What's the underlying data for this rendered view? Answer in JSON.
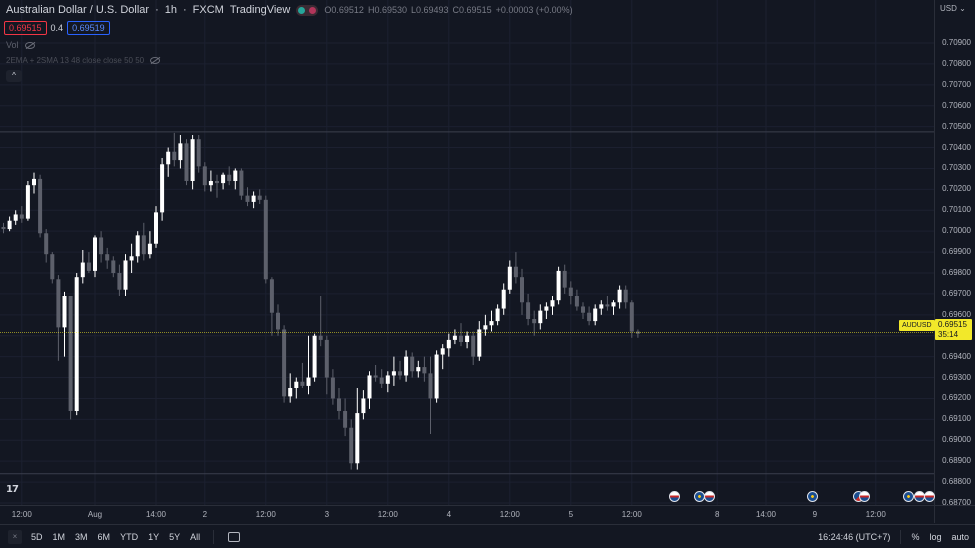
{
  "header": {
    "symbol_title": "Australian Dollar / U.S. Dollar",
    "interval": "1h",
    "broker": "FXCM",
    "platform": "TradingView",
    "ohlc": {
      "o_label": "O",
      "o": "0.69512",
      "h_label": "H",
      "h": "0.69530",
      "l_label": "L",
      "l": "0.69493",
      "c_label": "C",
      "c": "0.69515",
      "change": "+0.00003 (+0.00%)"
    }
  },
  "trade": {
    "sell": "0.69515",
    "spread": "0.4",
    "buy": "0.69519"
  },
  "indicators": [
    {
      "label": "Vol"
    },
    {
      "label": "2EMA + 2SMA 13 48 close close 50 50"
    }
  ],
  "price_axis": {
    "currency": "USD",
    "ticks": [
      "0.70900",
      "0.70800",
      "0.70700",
      "0.70600",
      "0.70500",
      "0.70400",
      "0.70300",
      "0.70200",
      "0.70100",
      "0.70000",
      "0.69900",
      "0.69800",
      "0.69700",
      "0.69600",
      "0.69500",
      "0.69400",
      "0.69300",
      "0.69200",
      "0.69100",
      "0.69000",
      "0.68900",
      "0.68800",
      "0.68700"
    ],
    "current_price": "0.69515",
    "countdown": "35:14",
    "symbol_tag": "AUDUSD"
  },
  "time_axis": {
    "labels": [
      {
        "text": "12:00",
        "bar": 3
      },
      {
        "text": "Aug",
        "bar": 15
      },
      {
        "text": "14:00",
        "bar": 25
      },
      {
        "text": "2",
        "bar": 33
      },
      {
        "text": "12:00",
        "bar": 43
      },
      {
        "text": "3",
        "bar": 53
      },
      {
        "text": "12:00",
        "bar": 63
      },
      {
        "text": "4",
        "bar": 73
      },
      {
        "text": "12:00",
        "bar": 83
      },
      {
        "text": "5",
        "bar": 93
      },
      {
        "text": "12:00",
        "bar": 103
      },
      {
        "text": "8",
        "bar": 117
      },
      {
        "text": "14:00",
        "bar": 125
      },
      {
        "text": "9",
        "bar": 133
      },
      {
        "text": "12:00",
        "bar": 143
      }
    ]
  },
  "bottom_bar": {
    "ranges": [
      "5D",
      "1M",
      "3M",
      "6M",
      "YTD",
      "1Y",
      "5Y",
      "All"
    ],
    "clock": "16:24:46 (UTC+7)",
    "percent": "%",
    "log": "log",
    "auto": "auto"
  },
  "colors": {
    "bg": "#131722",
    "candle_up": "#ffffff",
    "candle_down": "#5d606b",
    "price_line": "#f2e82a",
    "grid": "#1c2030"
  },
  "chart_data": {
    "type": "candlestick",
    "y_min": 0.687,
    "y_max": 0.709,
    "reference_lines": [
      0.70475,
      0.6884
    ],
    "candles": [
      [
        0.7002,
        0.7004,
        0.6999,
        0.7001
      ],
      [
        0.7001,
        0.7007,
        0.7,
        0.7005
      ],
      [
        0.7005,
        0.701,
        0.7003,
        0.7008
      ],
      [
        0.7008,
        0.7012,
        0.7004,
        0.7006
      ],
      [
        0.7006,
        0.7024,
        0.7005,
        0.7022
      ],
      [
        0.7022,
        0.7028,
        0.7018,
        0.7025
      ],
      [
        0.7025,
        0.7027,
        0.6997,
        0.6999
      ],
      [
        0.6999,
        0.7001,
        0.6985,
        0.6989
      ],
      [
        0.6989,
        0.699,
        0.6975,
        0.6977
      ],
      [
        0.6977,
        0.6979,
        0.6938,
        0.6954
      ],
      [
        0.6954,
        0.6971,
        0.694,
        0.6969
      ],
      [
        0.6969,
        0.6968,
        0.691,
        0.6914
      ],
      [
        0.6914,
        0.698,
        0.6912,
        0.6978
      ],
      [
        0.6978,
        0.6991,
        0.6975,
        0.6985
      ],
      [
        0.6985,
        0.699,
        0.698,
        0.6981
      ],
      [
        0.6981,
        0.6998,
        0.6978,
        0.6997
      ],
      [
        0.6997,
        0.7,
        0.6985,
        0.6989
      ],
      [
        0.6989,
        0.6992,
        0.6982,
        0.6986
      ],
      [
        0.6986,
        0.6988,
        0.6978,
        0.698
      ],
      [
        0.698,
        0.6984,
        0.6969,
        0.6972
      ],
      [
        0.6972,
        0.6989,
        0.6969,
        0.6986
      ],
      [
        0.6986,
        0.6994,
        0.698,
        0.6988
      ],
      [
        0.6988,
        0.7,
        0.6985,
        0.6998
      ],
      [
        0.6998,
        0.7004,
        0.6986,
        0.6989
      ],
      [
        0.6989,
        0.7,
        0.6987,
        0.6994
      ],
      [
        0.6994,
        0.7012,
        0.6992,
        0.7009
      ],
      [
        0.7009,
        0.7035,
        0.7005,
        0.7032
      ],
      [
        0.7032,
        0.704,
        0.7026,
        0.7038
      ],
      [
        0.7038,
        0.7047,
        0.7031,
        0.7034
      ],
      [
        0.7034,
        0.7046,
        0.703,
        0.7042
      ],
      [
        0.7042,
        0.7044,
        0.7022,
        0.7024
      ],
      [
        0.7024,
        0.7046,
        0.702,
        0.7044
      ],
      [
        0.7044,
        0.7046,
        0.7028,
        0.7031
      ],
      [
        0.7031,
        0.7033,
        0.7019,
        0.7022
      ],
      [
        0.7022,
        0.7029,
        0.7019,
        0.7024
      ],
      [
        0.7024,
        0.7027,
        0.7016,
        0.7023
      ],
      [
        0.7023,
        0.7028,
        0.702,
        0.7027
      ],
      [
        0.7027,
        0.7031,
        0.7022,
        0.7024
      ],
      [
        0.7024,
        0.703,
        0.702,
        0.7029
      ],
      [
        0.7029,
        0.703,
        0.7015,
        0.7017
      ],
      [
        0.7017,
        0.7021,
        0.7012,
        0.7014
      ],
      [
        0.7014,
        0.7019,
        0.7011,
        0.7017
      ],
      [
        0.7017,
        0.702,
        0.7013,
        0.7015
      ],
      [
        0.7015,
        0.7017,
        0.6975,
        0.6977
      ],
      [
        0.6977,
        0.6978,
        0.695,
        0.6961
      ],
      [
        0.6961,
        0.6965,
        0.695,
        0.6953
      ],
      [
        0.6953,
        0.6955,
        0.6918,
        0.6921
      ],
      [
        0.6921,
        0.6932,
        0.6918,
        0.6925
      ],
      [
        0.6925,
        0.693,
        0.692,
        0.6928
      ],
      [
        0.6928,
        0.6937,
        0.6925,
        0.6926
      ],
      [
        0.6926,
        0.695,
        0.6922,
        0.693
      ],
      [
        0.693,
        0.6951,
        0.6928,
        0.695
      ],
      [
        0.695,
        0.6969,
        0.6945,
        0.6948
      ],
      [
        0.6948,
        0.695,
        0.6922,
        0.693
      ],
      [
        0.693,
        0.6934,
        0.6917,
        0.692
      ],
      [
        0.692,
        0.6925,
        0.691,
        0.6914
      ],
      [
        0.6914,
        0.692,
        0.6902,
        0.6906
      ],
      [
        0.6906,
        0.691,
        0.6886,
        0.6889
      ],
      [
        0.6889,
        0.6925,
        0.6886,
        0.6913
      ],
      [
        0.6913,
        0.6924,
        0.691,
        0.692
      ],
      [
        0.692,
        0.6933,
        0.6915,
        0.6931
      ],
      [
        0.6931,
        0.6936,
        0.6928,
        0.693
      ],
      [
        0.693,
        0.6934,
        0.6925,
        0.6927
      ],
      [
        0.6927,
        0.6933,
        0.6923,
        0.6931
      ],
      [
        0.6931,
        0.694,
        0.6926,
        0.6933
      ],
      [
        0.6933,
        0.6938,
        0.6929,
        0.6931
      ],
      [
        0.6931,
        0.6943,
        0.6928,
        0.694
      ],
      [
        0.694,
        0.6942,
        0.693,
        0.6933
      ],
      [
        0.6933,
        0.6938,
        0.693,
        0.6935
      ],
      [
        0.6935,
        0.694,
        0.6928,
        0.6932
      ],
      [
        0.6932,
        0.694,
        0.6903,
        0.692
      ],
      [
        0.692,
        0.6943,
        0.6918,
        0.6941
      ],
      [
        0.6941,
        0.6946,
        0.6934,
        0.6944
      ],
      [
        0.6944,
        0.6951,
        0.694,
        0.6948
      ],
      [
        0.6948,
        0.6953,
        0.6946,
        0.695
      ],
      [
        0.695,
        0.6956,
        0.6945,
        0.6947
      ],
      [
        0.6947,
        0.6952,
        0.6944,
        0.695
      ],
      [
        0.695,
        0.6952,
        0.6936,
        0.694
      ],
      [
        0.694,
        0.6957,
        0.6938,
        0.6953
      ],
      [
        0.6953,
        0.696,
        0.695,
        0.6955
      ],
      [
        0.6955,
        0.6962,
        0.6952,
        0.6957
      ],
      [
        0.6957,
        0.6965,
        0.6955,
        0.6963
      ],
      [
        0.6963,
        0.6975,
        0.696,
        0.6972
      ],
      [
        0.6972,
        0.6986,
        0.697,
        0.6983
      ],
      [
        0.6983,
        0.699,
        0.6975,
        0.6978
      ],
      [
        0.6978,
        0.6982,
        0.696,
        0.6966
      ],
      [
        0.6966,
        0.697,
        0.6955,
        0.6958
      ],
      [
        0.6958,
        0.6962,
        0.695,
        0.6956
      ],
      [
        0.6956,
        0.6965,
        0.6953,
        0.6962
      ],
      [
        0.6962,
        0.6966,
        0.6958,
        0.6964
      ],
      [
        0.6964,
        0.6969,
        0.696,
        0.6967
      ],
      [
        0.6967,
        0.6983,
        0.6965,
        0.6981
      ],
      [
        0.6981,
        0.6984,
        0.697,
        0.6973
      ],
      [
        0.6973,
        0.6976,
        0.6965,
        0.6969
      ],
      [
        0.6969,
        0.6972,
        0.6962,
        0.6964
      ],
      [
        0.6964,
        0.6966,
        0.6958,
        0.6961
      ],
      [
        0.6961,
        0.6964,
        0.6955,
        0.6957
      ],
      [
        0.6957,
        0.6965,
        0.6955,
        0.6963
      ],
      [
        0.6963,
        0.6967,
        0.696,
        0.6965
      ],
      [
        0.6965,
        0.6969,
        0.6962,
        0.6964
      ],
      [
        0.6964,
        0.6967,
        0.696,
        0.6966
      ],
      [
        0.6966,
        0.6974,
        0.6963,
        0.6972
      ],
      [
        0.6972,
        0.6974,
        0.6963,
        0.6966
      ],
      [
        0.6966,
        0.6967,
        0.6949,
        0.6952
      ],
      [
        0.6952,
        0.6953,
        0.6949,
        0.6951
      ]
    ]
  },
  "events": [
    {
      "type": "us",
      "x": 674
    },
    {
      "type": "eu",
      "x": 699
    },
    {
      "type": "us",
      "x": 709
    },
    {
      "type": "eu",
      "x": 812
    },
    {
      "type": "au",
      "x": 858
    },
    {
      "type": "us",
      "x": 864
    },
    {
      "type": "eu",
      "x": 908
    },
    {
      "type": "us",
      "x": 919
    },
    {
      "type": "us",
      "x": 929
    }
  ]
}
